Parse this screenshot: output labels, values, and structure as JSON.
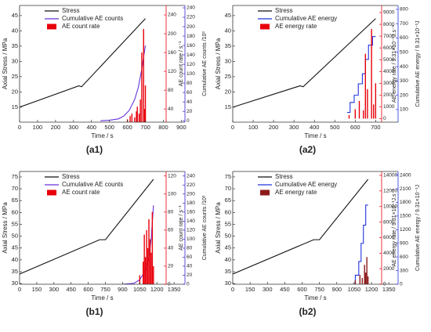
{
  "chart_data": [
    {
      "type": "line",
      "label": "(a1)",
      "xlabel": "Time / s",
      "ylabel": "Axial Stress / MPa",
      "y2label": "AE count rate / s⁻¹",
      "y3label": "Cumulative AE counts /10³",
      "xlim": [
        0,
        920
      ],
      "xticks": [
        0,
        100,
        200,
        300,
        400,
        500,
        600,
        700,
        800,
        900
      ],
      "ylim": [
        10.1,
        48.3
      ],
      "yticks": [
        15,
        20,
        25,
        30,
        35,
        40,
        45
      ],
      "y2lim": [
        12,
        260
      ],
      "y2ticks": [
        40,
        80,
        120,
        160,
        200,
        240
      ],
      "y2color": "#e8000b",
      "y3lim": [
        -3,
        245
      ],
      "y3ticks": [
        0,
        20,
        40,
        60,
        80,
        100,
        120,
        140,
        160,
        180,
        200,
        220,
        240
      ],
      "y3color": "#3322cc",
      "series": [
        {
          "name": "Stress",
          "color": "#111111",
          "x": [
            0,
            330,
            345,
            700
          ],
          "values": [
            15,
            22,
            21.7,
            44
          ]
        },
        {
          "name": "Cumulative AE counts",
          "color": "#6633dd",
          "axis": "y3",
          "x": [
            450,
            500,
            550,
            580,
            610,
            640,
            660,
            680,
            700
          ],
          "values": [
            0,
            1,
            4,
            10,
            22,
            45,
            70,
            110,
            160
          ]
        },
        {
          "name": "AE count rate",
          "color": "#e8000b",
          "axis": "y2",
          "kind": "bar",
          "x": [
            600,
            615,
            625,
            640,
            650,
            655,
            665,
            672,
            680,
            690,
            695,
            700
          ],
          "values": [
            18,
            25,
            30,
            22,
            35,
            45,
            30,
            60,
            160,
            210,
            40,
            90
          ]
        }
      ]
    },
    {
      "type": "line",
      "label": "(a2)",
      "xlabel": "Time / s",
      "ylabel": "Axial Stress / MPa",
      "y2label": "AE energy rate / 9.31×10⁻¹J.s⁻¹",
      "y3label": "Cumulative AE energy / 9.31×10⁻¹J",
      "xlim": [
        0,
        810
      ],
      "xticks": [
        0,
        100,
        200,
        300,
        400,
        500,
        600,
        700
      ],
      "ylim": [
        10.1,
        48.3
      ],
      "yticks": [
        15,
        20,
        25,
        30,
        35,
        40,
        45
      ],
      "y2lim": [
        -300,
        9600
      ],
      "y2ticks": [
        0,
        1000,
        2000,
        3000,
        4000,
        5000,
        6000,
        7000,
        8000,
        9000
      ],
      "y2color": "#e8000b",
      "y3lim": [
        12,
        827
      ],
      "y3ticks": [
        100,
        200,
        300,
        400,
        500,
        600,
        700,
        800
      ],
      "y3color": "#2233dd",
      "series": [
        {
          "name": "Stress",
          "color": "#111111",
          "x": [
            0,
            330,
            345,
            700
          ],
          "values": [
            15,
            22,
            21.7,
            44
          ]
        },
        {
          "name": "Cumulative AE energy",
          "color": "#2233dd",
          "axis": "y3",
          "x": [
            560,
            575,
            575,
            595,
            595,
            615,
            615,
            635,
            635,
            650,
            650,
            665,
            665,
            685,
            685,
            700
          ],
          "values": [
            80,
            80,
            150,
            150,
            200,
            200,
            280,
            280,
            350,
            350,
            450,
            450,
            550,
            550,
            610,
            610
          ]
        },
        {
          "name": "AE energy rate",
          "color": "#e8000b",
          "axis": "y2",
          "kind": "bar",
          "x": [
            570,
            600,
            620,
            640,
            650,
            660,
            680,
            690,
            700
          ],
          "values": [
            300,
            800,
            1500,
            700,
            5500,
            2500,
            7600,
            1200,
            3000
          ]
        }
      ]
    },
    {
      "type": "line",
      "label": "(b1)",
      "xlabel": "Time / s",
      "ylabel": "Axial Stress / MPa",
      "y2label": "AE count rate / s⁻¹",
      "y3label": "Cumulative AE counts /10³",
      "xlim": [
        0,
        1445
      ],
      "xticks": [
        0,
        150,
        300,
        450,
        600,
        750,
        900,
        1050,
        1200,
        1350
      ],
      "ylim": [
        29.7,
        77.3
      ],
      "yticks": [
        30,
        35,
        40,
        45,
        50,
        55,
        60,
        65,
        70,
        75
      ],
      "y2lim": [
        0,
        125
      ],
      "y2ticks": [
        0,
        20,
        40,
        60,
        80,
        100,
        120
      ],
      "y2color": "#e8000b",
      "y3lim": [
        0,
        250
      ],
      "y3ticks": [
        0,
        20,
        40,
        60,
        80,
        100,
        120,
        140,
        160,
        180,
        200,
        220,
        240
      ],
      "y3color": "#3322cc",
      "series": [
        {
          "name": "Stress",
          "color": "#111111",
          "x": [
            0,
            700,
            750,
            1170
          ],
          "values": [
            34,
            48.5,
            48.5,
            74
          ]
        },
        {
          "name": "Cumulative AE counts",
          "color": "#6633dd",
          "axis": "y3",
          "x": [
            900,
            1000,
            1050,
            1100,
            1130,
            1150,
            1170
          ],
          "values": [
            0,
            2,
            10,
            30,
            60,
            100,
            175
          ]
        },
        {
          "name": "AE count rate",
          "color": "#e8000b",
          "axis": "y2",
          "kind": "bar",
          "x": [
            1050,
            1080,
            1090,
            1100,
            1110,
            1120,
            1130,
            1140,
            1150,
            1160,
            1170
          ],
          "values": [
            10,
            25,
            55,
            30,
            60,
            40,
            72,
            50,
            35,
            80,
            20
          ]
        }
      ]
    },
    {
      "type": "line",
      "label": "(b2)",
      "xlabel": "Time / s",
      "ylabel": "Axial Stress / MPa",
      "y2label": "AE energy rate / 9.31×10⁻¹J.s⁻¹",
      "y3label": "Cumulative AE energy / 9.31×10⁻¹J",
      "xlim": [
        0,
        1430
      ],
      "xticks": [
        0,
        150,
        300,
        450,
        600,
        750,
        900,
        1050,
        1200,
        1350
      ],
      "ylim": [
        29.7,
        77.3
      ],
      "yticks": [
        30,
        35,
        40,
        45,
        50,
        55,
        60,
        65,
        70,
        75
      ],
      "y2lim": [
        0,
        14500
      ],
      "y2ticks": [
        0,
        2000,
        4000,
        6000,
        8000,
        10000,
        12000,
        14000
      ],
      "y2color": "#e8000b",
      "y3lim": [
        0,
        2480
      ],
      "y3ticks": [
        0,
        300,
        600,
        900,
        1200,
        1500,
        1800,
        2100,
        2400
      ],
      "y3color": "#2233dd",
      "series": [
        {
          "name": "Stress",
          "color": "#111111",
          "x": [
            0,
            700,
            750,
            1170
          ],
          "values": [
            34,
            48.5,
            48.5,
            74
          ]
        },
        {
          "name": "Cumulative AE energy",
          "color": "#2233dd",
          "axis": "y3",
          "x": [
            1030,
            1060,
            1060,
            1090,
            1090,
            1110,
            1110,
            1130,
            1130,
            1150,
            1150,
            1170
          ],
          "values": [
            0,
            0,
            200,
            200,
            500,
            500,
            900,
            900,
            1300,
            1300,
            1740,
            1740
          ]
        },
        {
          "name": "AE energy rate",
          "color": "#8b1a1a",
          "axis": "y2",
          "kind": "bar",
          "x": [
            1060,
            1100,
            1120,
            1140,
            1150,
            1160,
            1170
          ],
          "values": [
            500,
            1200,
            800,
            2500,
            1500,
            3500,
            1000
          ]
        }
      ]
    }
  ]
}
